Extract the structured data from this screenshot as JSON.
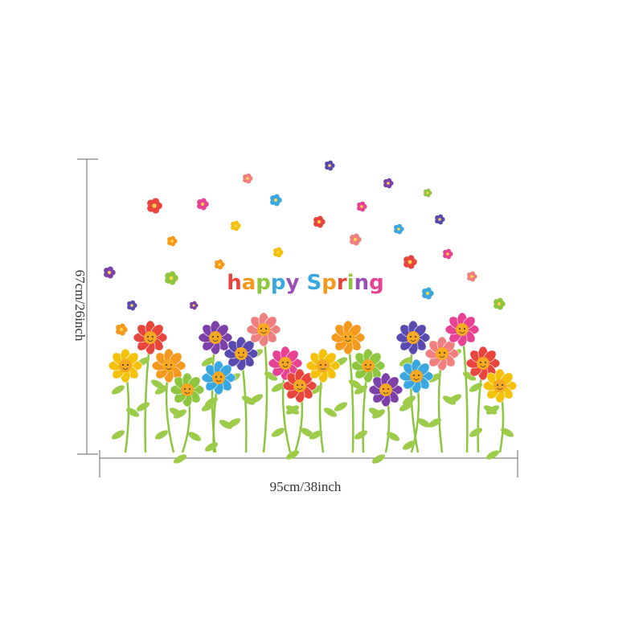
{
  "headline": "happy Spring",
  "dimensions": {
    "height": "67cm/26inch",
    "width": "95cm/38inch"
  }
}
